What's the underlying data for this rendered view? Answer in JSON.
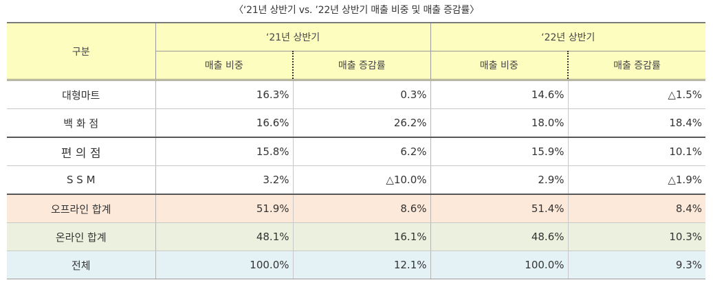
{
  "title": "〈‘21년 상반기 vs. ’22년 상반기 매출 비중 및 매출 증감률〉",
  "header": {
    "category": "구분",
    "period1": "‘21년 상반기",
    "period2": "‘22년 상반기",
    "share": "매출 비중",
    "growth": "매출 증감률"
  },
  "rows": [
    {
      "label": "대형마트",
      "share21": "16.3%",
      "growth21": "0.3%",
      "share22": "14.6%",
      "growth22": "△1.5%"
    },
    {
      "label": "백 화 점",
      "share21": "16.6%",
      "growth21": "26.2%",
      "share22": "18.0%",
      "growth22": "18.4%"
    },
    {
      "label": "편 의 점",
      "share21": "15.8%",
      "growth21": "6.2%",
      "share22": "15.9%",
      "growth22": "10.1%"
    },
    {
      "label": "S S M",
      "share21": "3.2%",
      "growth21": "△10.0%",
      "share22": "2.9%",
      "growth22": "△1.9%"
    },
    {
      "label": "오프라인 합계",
      "share21": "51.9%",
      "growth21": "8.6%",
      "share22": "51.4%",
      "growth22": "8.4%"
    },
    {
      "label": "온라인 합계",
      "share21": "48.1%",
      "growth21": "16.1%",
      "share22": "48.6%",
      "growth22": "10.3%"
    },
    {
      "label": "전체",
      "share21": "100.0%",
      "growth21": "12.1%",
      "share22": "100.0%",
      "growth22": "9.3%"
    }
  ]
}
